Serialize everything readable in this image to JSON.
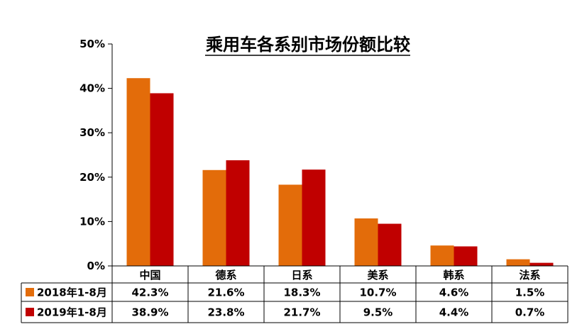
{
  "chart_data": {
    "type": "bar",
    "title": "乘用车各系别市场份额比较",
    "categories": [
      "中国",
      "德系",
      "日系",
      "美系",
      "韩系",
      "法系"
    ],
    "series": [
      {
        "name": "2018年1-8月",
        "color": "#E36C0A",
        "values": [
          42.3,
          21.6,
          18.3,
          10.7,
          4.6,
          1.5
        ],
        "labels": [
          "42.3%",
          "21.6%",
          "18.3%",
          "10.7%",
          "4.6%",
          "1.5%"
        ]
      },
      {
        "name": "2019年1-8月",
        "color": "#C00000",
        "values": [
          38.9,
          23.8,
          21.7,
          9.5,
          4.4,
          0.7
        ],
        "labels": [
          "38.9%",
          "23.8%",
          "21.7%",
          "9.5%",
          "4.4%",
          "0.7%"
        ]
      }
    ],
    "ylim": [
      0,
      50
    ],
    "yticks": [
      0,
      10,
      20,
      30,
      40,
      50
    ],
    "ytick_labels": [
      "0%",
      "10%",
      "20%",
      "30%",
      "40%",
      "50%"
    ],
    "grid": false,
    "legend": "data-table"
  }
}
